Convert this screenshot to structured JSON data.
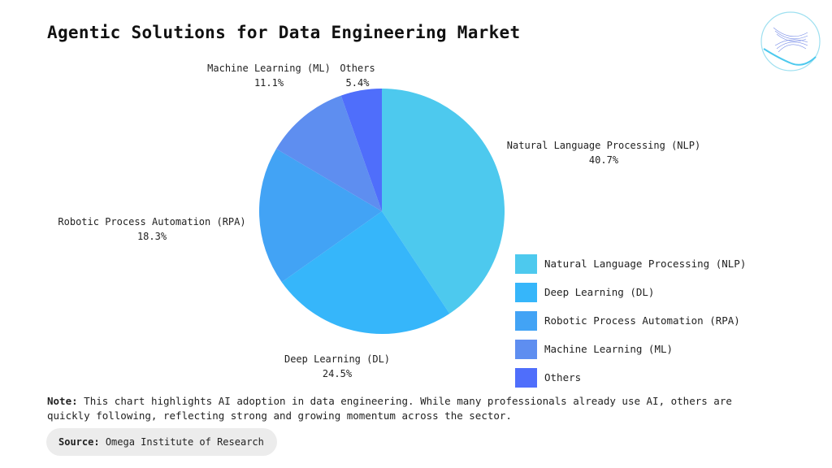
{
  "chart_data": {
    "type": "pie",
    "title": "Agentic Solutions for Data Engineering Market",
    "categories": [
      "Natural Language Processing (NLP)",
      "Deep Learning (DL)",
      "Robotic Process Automation (RPA)",
      "Machine Learning (ML)",
      "Others"
    ],
    "values": [
      40.7,
      24.5,
      18.3,
      11.1,
      5.4
    ],
    "value_labels": [
      "40.7%",
      "24.5%",
      "18.3%",
      "11.1%",
      "5.4%"
    ],
    "colors": [
      "#4DC9EE",
      "#36B6FA",
      "#42A3F5",
      "#5E8EF0",
      "#4F6EFB"
    ],
    "legend_position": "right"
  },
  "note": {
    "label": "Note:",
    "text": "This chart highlights AI adoption in data engineering. While many professionals already use AI, others are quickly following, reflecting strong and growing momentum across the sector."
  },
  "source": {
    "label": "Source:",
    "text": "Omega Institute of Research"
  }
}
